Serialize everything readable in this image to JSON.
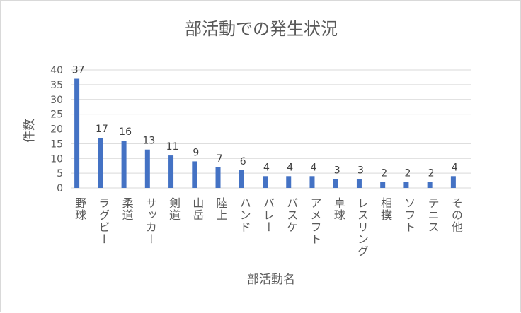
{
  "chart_data": {
    "type": "bar",
    "title": "部活動での発生状況",
    "xlabel": "部活動名",
    "ylabel": "件数",
    "ylim": [
      0,
      40
    ],
    "yticks": [
      0,
      5,
      10,
      15,
      20,
      25,
      30,
      35,
      40
    ],
    "categories": [
      "野球",
      "ラグビー",
      "柔道",
      "サッカー",
      "剣道",
      "山岳",
      "陸上",
      "ハンド",
      "バレー",
      "バスケ",
      "アメフト",
      "卓球",
      "レスリング",
      "相撲",
      "ソフト",
      "テニス",
      "その他"
    ],
    "values": [
      37,
      17,
      16,
      13,
      11,
      9,
      7,
      6,
      4,
      4,
      4,
      3,
      3,
      2,
      2,
      2,
      4
    ],
    "bar_color": "#4472c4",
    "grid": true,
    "legend": "none"
  }
}
